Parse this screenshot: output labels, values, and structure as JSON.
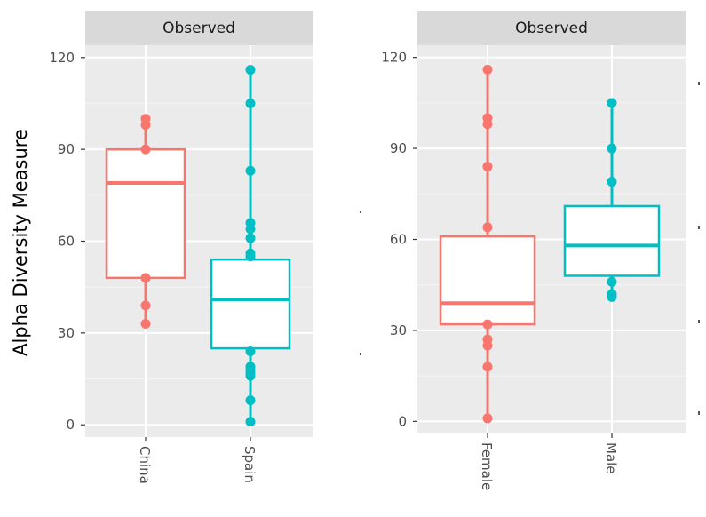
{
  "y_axis_title": "Alpha Diversity Measure",
  "colors": {
    "group1": "#f8766d",
    "group2": "#00bfc4",
    "panel_bg": "#ebebeb",
    "strip_bg": "#d9d9d9",
    "grid": "#ffffff"
  },
  "chart_data": [
    {
      "type": "boxplot",
      "strip_label": "Observed",
      "ylim": [
        -4,
        124
      ],
      "yticks": [
        0,
        30,
        60,
        90,
        120
      ],
      "categories": [
        "China",
        "Spain"
      ],
      "series": [
        {
          "name": "China",
          "color": "#f8766d",
          "q1": 48,
          "median": 79,
          "q3": 90,
          "whisker_low": 33,
          "whisker_high": 100,
          "points": [
            33,
            39,
            48,
            90,
            98,
            100
          ]
        },
        {
          "name": "Spain",
          "color": "#00bfc4",
          "q1": 25,
          "median": 41,
          "q3": 54,
          "whisker_low": 1,
          "whisker_high": 116,
          "points": [
            1,
            8,
            16,
            17,
            18,
            19,
            24,
            55,
            56,
            61,
            64,
            66,
            83,
            105,
            116
          ]
        }
      ]
    },
    {
      "type": "boxplot",
      "strip_label": "Observed",
      "ylim": [
        -4,
        124
      ],
      "yticks": [
        0,
        30,
        60,
        90,
        120
      ],
      "categories": [
        "Female",
        "Male"
      ],
      "series": [
        {
          "name": "Female",
          "color": "#f8766d",
          "q1": 32,
          "median": 39,
          "q3": 61,
          "whisker_low": 1,
          "whisker_high": 116,
          "points": [
            1,
            18,
            25,
            27,
            32,
            64,
            84,
            98,
            100,
            116
          ]
        },
        {
          "name": "Male",
          "color": "#00bfc4",
          "q1": 48,
          "median": 58,
          "q3": 71,
          "whisker_low": 41,
          "whisker_high": 105,
          "points": [
            41,
            42,
            46,
            79,
            90,
            105
          ]
        }
      ]
    }
  ]
}
